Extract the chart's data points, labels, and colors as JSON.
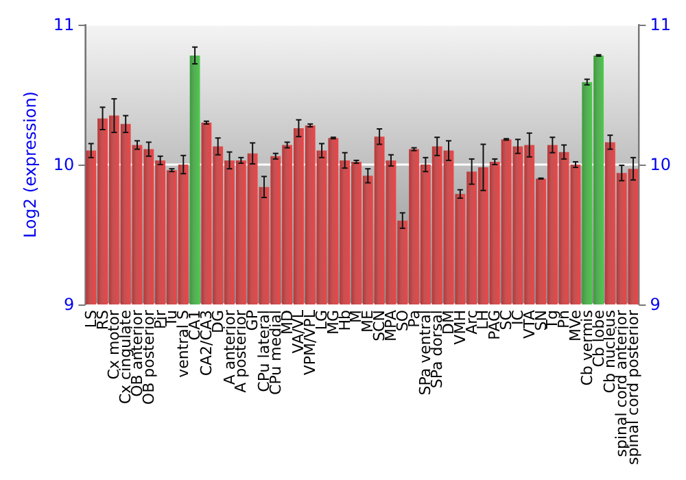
{
  "chart_data": {
    "type": "bar",
    "ylabel": "Log2 (expression)",
    "categories": [
      "LS",
      "RS",
      "Cx motor",
      "Cx cingulate",
      "OB anterior",
      "OB posterior",
      "Pir",
      "Tu",
      "ventral S",
      "CA1",
      "CA2/CA3",
      "DG",
      "A anterior",
      "A posterior",
      "GP",
      "CPu lateral",
      "CPu medial",
      "MD",
      "VA/VL",
      "VPM/VPL",
      "LG",
      "MG",
      "Hb",
      "M",
      "ME",
      "SCN",
      "MPA",
      "SO",
      "Pa",
      "SPa ventral",
      "SPa dorsal",
      "DM",
      "VMH",
      "Arc",
      "LH",
      "PAG",
      "SC",
      "IC",
      "VTA",
      "SN",
      "Tg",
      "Pn",
      "MVe",
      "Cb vermis",
      "Cb lobe",
      "Cb nucleus",
      "spinal cord anterior",
      "spinal cord posterior"
    ],
    "values": [
      10.1,
      10.33,
      10.35,
      10.29,
      10.14,
      10.11,
      10.03,
      9.96,
      10.0,
      10.78,
      10.3,
      10.13,
      10.03,
      10.03,
      10.08,
      9.84,
      10.06,
      10.14,
      10.26,
      10.28,
      10.1,
      10.19,
      10.03,
      10.02,
      9.92,
      10.2,
      10.03,
      9.6,
      10.11,
      10.0,
      10.13,
      10.1,
      9.79,
      9.95,
      9.98,
      10.02,
      10.18,
      10.13,
      10.14,
      9.9,
      10.14,
      10.09,
      10.0,
      10.59,
      10.78,
      10.16,
      9.94,
      9.97
    ],
    "errors": [
      0.05,
      0.08,
      0.12,
      0.06,
      0.03,
      0.05,
      0.03,
      0.01,
      0.065,
      0.06,
      0.01,
      0.06,
      0.06,
      0.02,
      0.075,
      0.075,
      0.02,
      0.02,
      0.06,
      0.01,
      0.05,
      0.005,
      0.055,
      0.01,
      0.05,
      0.055,
      0.04,
      0.055,
      0.01,
      0.05,
      0.065,
      0.07,
      0.03,
      0.09,
      0.165,
      0.02,
      0.005,
      0.05,
      0.085,
      0.003,
      0.055,
      0.05,
      0.02,
      0.02,
      0.005,
      0.05,
      0.055,
      0.08
    ],
    "colors": [
      "#b83536",
      "#b83536",
      "#b83536",
      "#b83536",
      "#b83536",
      "#b83536",
      "#b83536",
      "#b83536",
      "#b83536",
      "#3a9c3a",
      "#b83536",
      "#b83536",
      "#b83536",
      "#b83536",
      "#b83536",
      "#b83536",
      "#b83536",
      "#b83536",
      "#b83536",
      "#b83536",
      "#b83536",
      "#b83536",
      "#b83536",
      "#b83536",
      "#b83536",
      "#b83536",
      "#b83536",
      "#b83536",
      "#b83536",
      "#b83536",
      "#b83536",
      "#b83536",
      "#b83536",
      "#b83536",
      "#b83536",
      "#b83536",
      "#b83536",
      "#b83536",
      "#b83536",
      "#b83536",
      "#b83536",
      "#b83536",
      "#b83536",
      "#3a9c3a",
      "#3a9c3a",
      "#b83536",
      "#b83536",
      "#b83536"
    ],
    "ylim": [
      9,
      11
    ],
    "yticks": [
      9,
      10,
      11
    ],
    "y2lim": [
      9,
      11
    ],
    "y2ticks": [
      9,
      10,
      11
    ],
    "grid": "y"
  }
}
